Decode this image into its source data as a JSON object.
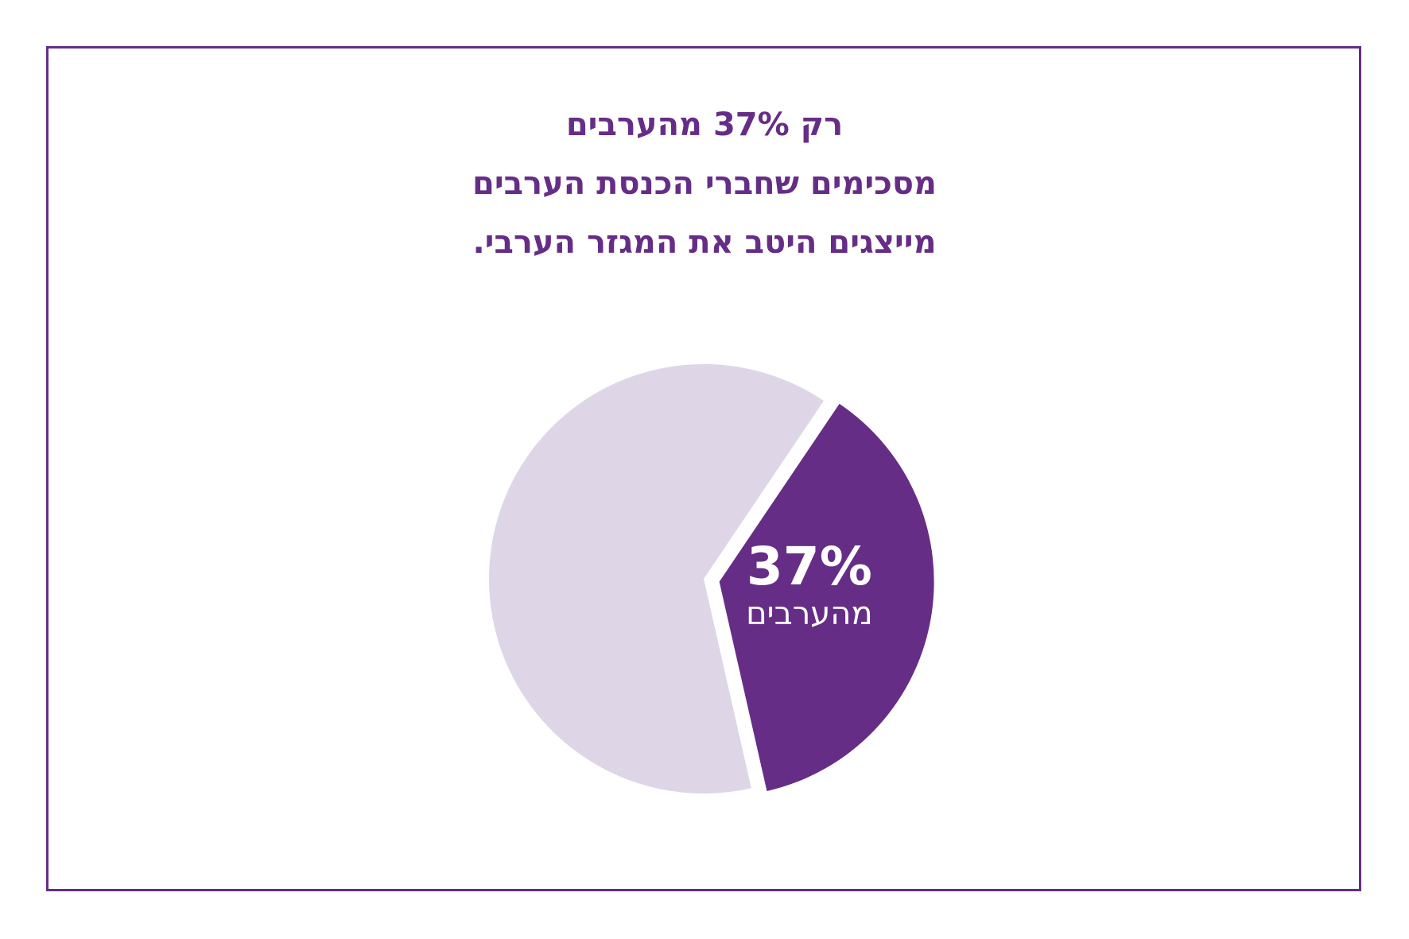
{
  "title_lines": [
    "רק 37% מהערבים",
    "מסכימים שחברי הכנסת הערבים",
    "מייצגים היטב את המגזר הערבי."
  ],
  "colors": {
    "accent": "#662d87",
    "muted": "#ded6e6",
    "label": "#ffffff",
    "frame": "#662d87"
  },
  "chart_data": {
    "type": "pie",
    "unit": "%",
    "slices": [
      {
        "name": "מהערבים",
        "value": 37,
        "color": "#662d87",
        "exploded": true
      },
      {
        "name": "",
        "value": 63,
        "color": "#ded6e6",
        "exploded": false
      }
    ],
    "data_labels": [
      {
        "value_text": "37%",
        "caption": "מהערבים"
      }
    ]
  }
}
